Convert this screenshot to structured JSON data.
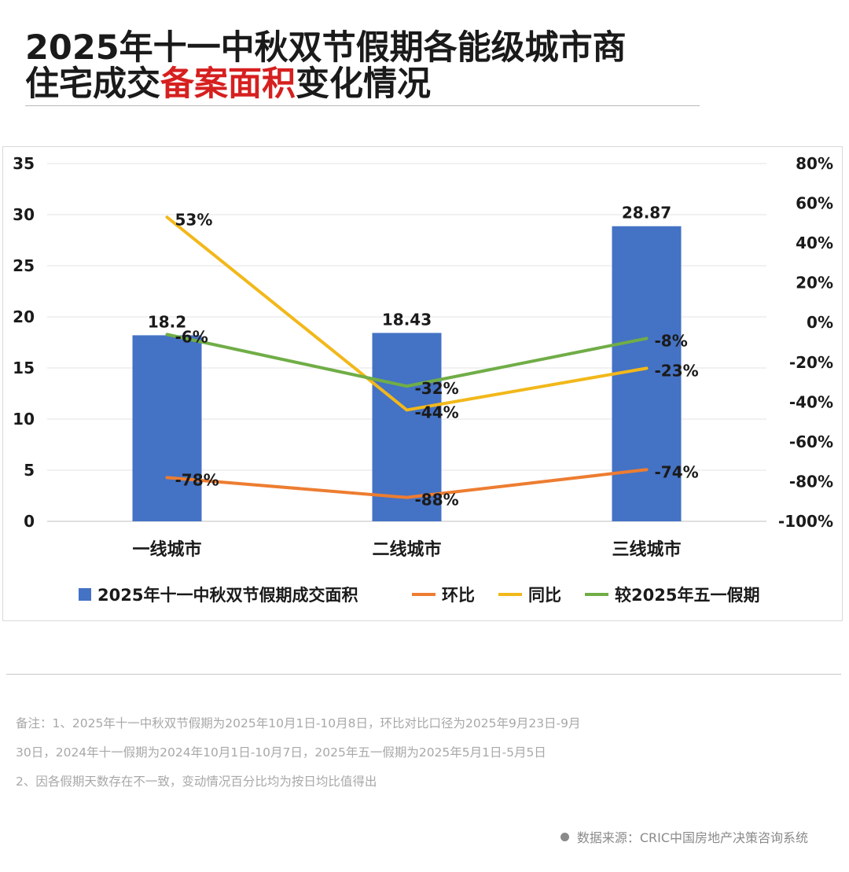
{
  "title": {
    "line1": "2025年十一中秋双节假期各能级城市商",
    "line2_pre": "住宅成交",
    "line2_highlight": "备案面积",
    "line2_post": "变化情况"
  },
  "colors": {
    "bar": "#4472c4",
    "mom": "#ed7d31",
    "yoy": "#f2b81a",
    "vs_mayday": "#70ad47",
    "highlight": "#d6201f"
  },
  "chart_data": {
    "type": "bar",
    "categories": [
      "一线城市",
      "二线城市",
      "三线城市"
    ],
    "y_left": {
      "min": 0,
      "max": 35,
      "step": 5,
      "ticks": [
        "0",
        "5",
        "10",
        "15",
        "20",
        "25",
        "30",
        "35"
      ]
    },
    "y_right": {
      "min": -100,
      "max": 80,
      "step": 20,
      "ticks": [
        "-100%",
        "-80%",
        "-60%",
        "-40%",
        "-20%",
        "0%",
        "20%",
        "40%",
        "60%",
        "80%"
      ]
    },
    "bar_series": {
      "name": "2025年十一中秋双节假期成交面积",
      "values": [
        18.2,
        18.43,
        28.87
      ],
      "labels": [
        "18.2",
        "18.43",
        "28.87"
      ]
    },
    "line_series": [
      {
        "key": "mom",
        "name": "环比",
        "values": [
          -78,
          -88,
          -74
        ],
        "labels": [
          "-78%",
          "-88%",
          "-74%"
        ]
      },
      {
        "key": "yoy",
        "name": "同比",
        "values": [
          53,
          -44,
          -23
        ],
        "labels": [
          "53%",
          "-44%",
          "-23%"
        ]
      },
      {
        "key": "vs_mayday",
        "name": "较2025年五一假期",
        "values": [
          -6,
          -32,
          -8
        ],
        "labels": [
          "-6%",
          "-32%",
          "-8%"
        ]
      }
    ],
    "legend_position": "bottom",
    "grid": true
  },
  "notes": [
    "备注：1、2025年十一中秋双节假期为2025年10月1日-10月8日，环比对比口径为2025年9月23日-9月",
    "30日，2024年十一假期为2024年10月1日-10月7日，2025年五一假期为2025年5月1日-5月5日",
    "2、因各假期天数存在不一致，变动情况百分比均为按日均比值得出"
  ],
  "source": "数据来源：CRIC中国房地产决策咨询系统"
}
